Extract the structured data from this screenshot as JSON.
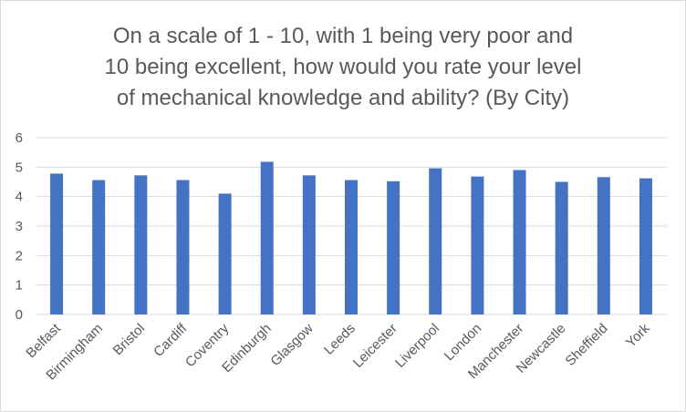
{
  "chart_data": {
    "type": "bar",
    "title_lines": [
      "On a scale of 1 - 10, with 1 being very poor and",
      "10 being excellent, how would you rate your level",
      "of mechanical knowledge and ability? (By City)"
    ],
    "categories": [
      "Belfast",
      "Birmingham",
      "Bristol",
      "Cardiff",
      "Coventry",
      "Edinburgh",
      "Glasgow",
      "Leeds",
      "Leicester",
      "Liverpool",
      "London",
      "Manchester",
      "Newcastle",
      "Sheffield",
      "York"
    ],
    "values": [
      4.78,
      4.56,
      4.72,
      4.56,
      4.1,
      5.18,
      4.72,
      4.56,
      4.52,
      4.96,
      4.68,
      4.9,
      4.5,
      4.66,
      4.62
    ],
    "yticks": [
      "0",
      "1",
      "2",
      "3",
      "4",
      "5",
      "6"
    ],
    "ylim": [
      0,
      6
    ],
    "grid": true,
    "bar_color": "#4472c4",
    "grid_color": "#d9d9d9"
  }
}
